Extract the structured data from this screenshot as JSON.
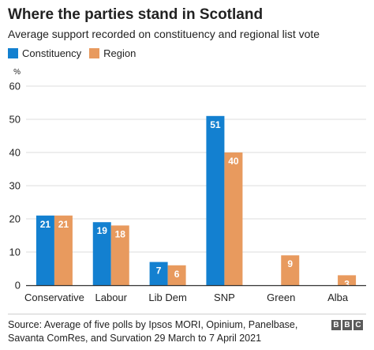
{
  "header": {
    "title": "Where the parties stand in Scotland",
    "subtitle": "Average support recorded on constituency and regional list vote"
  },
  "legend": {
    "items": [
      {
        "label": "Constituency",
        "color": "#1380d0"
      },
      {
        "label": "Region",
        "color": "#e89a5e"
      }
    ]
  },
  "footer": {
    "source": "Source: Average of five polls by Ipsos MORI, Opinium, Panelbase, Savanta ComRes, and Survation 29 March to 7 April 2021",
    "logo": [
      "B",
      "B",
      "C"
    ]
  },
  "chart_data": {
    "type": "bar",
    "unit_label": "%",
    "categories": [
      "Conservative",
      "Labour",
      "Lib Dem",
      "SNP",
      "Green",
      "Alba"
    ],
    "series": [
      {
        "name": "Constituency",
        "color": "#1380d0",
        "values": [
          21,
          19,
          7,
          51,
          null,
          null
        ]
      },
      {
        "name": "Region",
        "color": "#e89a5e",
        "values": [
          21,
          18,
          6,
          40,
          9,
          3
        ]
      }
    ],
    "ylim": [
      0,
      60
    ],
    "yticks": [
      0,
      10,
      20,
      30,
      40,
      50,
      60
    ],
    "grid": true,
    "legend_position": "top-left",
    "data_labels": true
  }
}
